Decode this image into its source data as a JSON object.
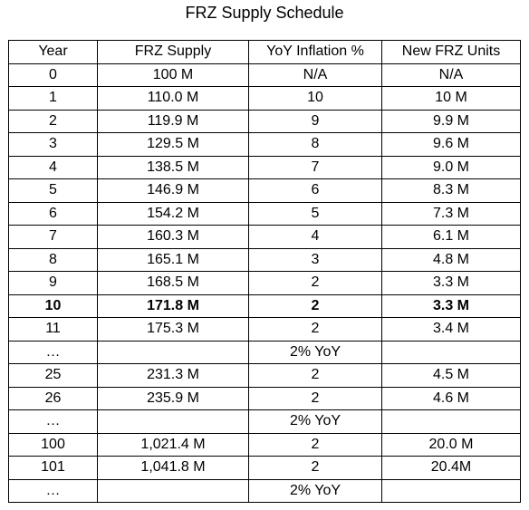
{
  "title": "FRZ Supply Schedule",
  "table": {
    "headers": [
      "Year",
      "FRZ Supply",
      "YoY Inflation %",
      "New FRZ Units"
    ],
    "rows": [
      {
        "year": "0",
        "supply": "100 M",
        "inflation": "N/A",
        "new_units": "N/A",
        "bold": false
      },
      {
        "year": "1",
        "supply": "110.0 M",
        "inflation": "10",
        "new_units": "10 M",
        "bold": false
      },
      {
        "year": "2",
        "supply": "119.9 M",
        "inflation": "9",
        "new_units": "9.9 M",
        "bold": false
      },
      {
        "year": "3",
        "supply": "129.5 M",
        "inflation": "8",
        "new_units": "9.6 M",
        "bold": false
      },
      {
        "year": "4",
        "supply": "138.5 M",
        "inflation": "7",
        "new_units": "9.0 M",
        "bold": false
      },
      {
        "year": "5",
        "supply": "146.9 M",
        "inflation": "6",
        "new_units": "8.3 M",
        "bold": false
      },
      {
        "year": "6",
        "supply": "154.2 M",
        "inflation": "5",
        "new_units": "7.3 M",
        "bold": false
      },
      {
        "year": "7",
        "supply": "160.3 M",
        "inflation": "4",
        "new_units": "6.1 M",
        "bold": false
      },
      {
        "year": "8",
        "supply": "165.1 M",
        "inflation": "3",
        "new_units": "4.8 M",
        "bold": false
      },
      {
        "year": "9",
        "supply": "168.5 M",
        "inflation": "2",
        "new_units": "3.3 M",
        "bold": false
      },
      {
        "year": "10",
        "supply": "171.8 M",
        "inflation": "2",
        "new_units": "3.3 M",
        "bold": true
      },
      {
        "year": "11",
        "supply": "175.3 M",
        "inflation": "2",
        "new_units": "3.4 M",
        "bold": false
      },
      {
        "year": "…",
        "supply": "",
        "inflation": "2% YoY",
        "new_units": "",
        "bold": false
      },
      {
        "year": "25",
        "supply": "231.3 M",
        "inflation": "2",
        "new_units": "4.5 M",
        "bold": false
      },
      {
        "year": "26",
        "supply": "235.9 M",
        "inflation": "2",
        "new_units": "4.6 M",
        "bold": false
      },
      {
        "year": "…",
        "supply": "",
        "inflation": "2% YoY",
        "new_units": "",
        "bold": false
      },
      {
        "year": "100",
        "supply": "1,021.4 M",
        "inflation": "2",
        "new_units": "20.0 M",
        "bold": false
      },
      {
        "year": "101",
        "supply": "1,041.8 M",
        "inflation": "2",
        "new_units": "20.4M",
        "bold": false
      },
      {
        "year": "…",
        "supply": "",
        "inflation": "2% YoY",
        "new_units": "",
        "bold": false
      }
    ]
  }
}
